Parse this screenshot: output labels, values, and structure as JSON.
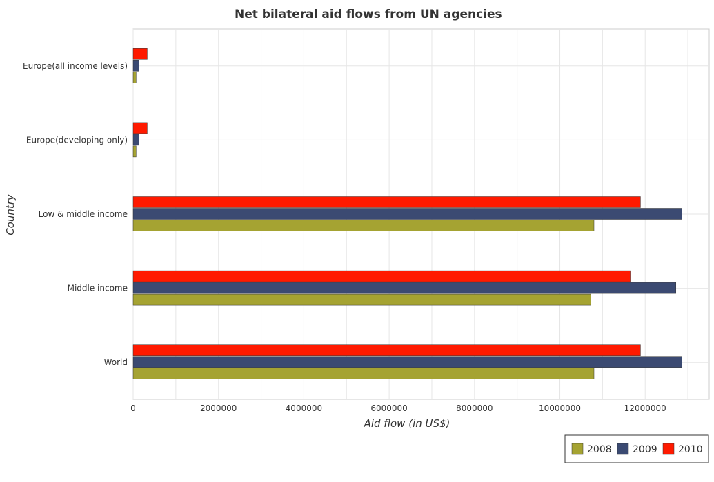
{
  "chart_data": {
    "type": "bar",
    "orientation": "horizontal",
    "title": "Net bilateral aid flows from UN agencies",
    "xlabel": "Aid flow (in US$)",
    "ylabel": "Country",
    "xlim": [
      0,
      13500000
    ],
    "x_ticks": [
      0,
      2000000,
      4000000,
      6000000,
      8000000,
      10000000,
      12000000
    ],
    "x_tick_labels": [
      "0",
      "2000000",
      "4000000",
      "6000000",
      "8000000",
      "10000000",
      "12000000"
    ],
    "categories": [
      "Europe(all income levels)",
      "Europe(developing only)",
      "Low & middle income",
      "Middle income",
      "World"
    ],
    "series": [
      {
        "name": "2008",
        "color": "#a5a332",
        "values": [
          70000,
          70000,
          10800000,
          10730000,
          10800000
        ]
      },
      {
        "name": "2009",
        "color": "#3b4a72",
        "values": [
          140000,
          140000,
          12860000,
          12720000,
          12860000
        ]
      },
      {
        "name": "2010",
        "color": "#ff1a00",
        "values": [
          330000,
          330000,
          11890000,
          11650000,
          11890000
        ]
      }
    ],
    "legend": [
      "2008",
      "2009",
      "2010"
    ],
    "legend_position": "bottom-right",
    "grid": true
  }
}
